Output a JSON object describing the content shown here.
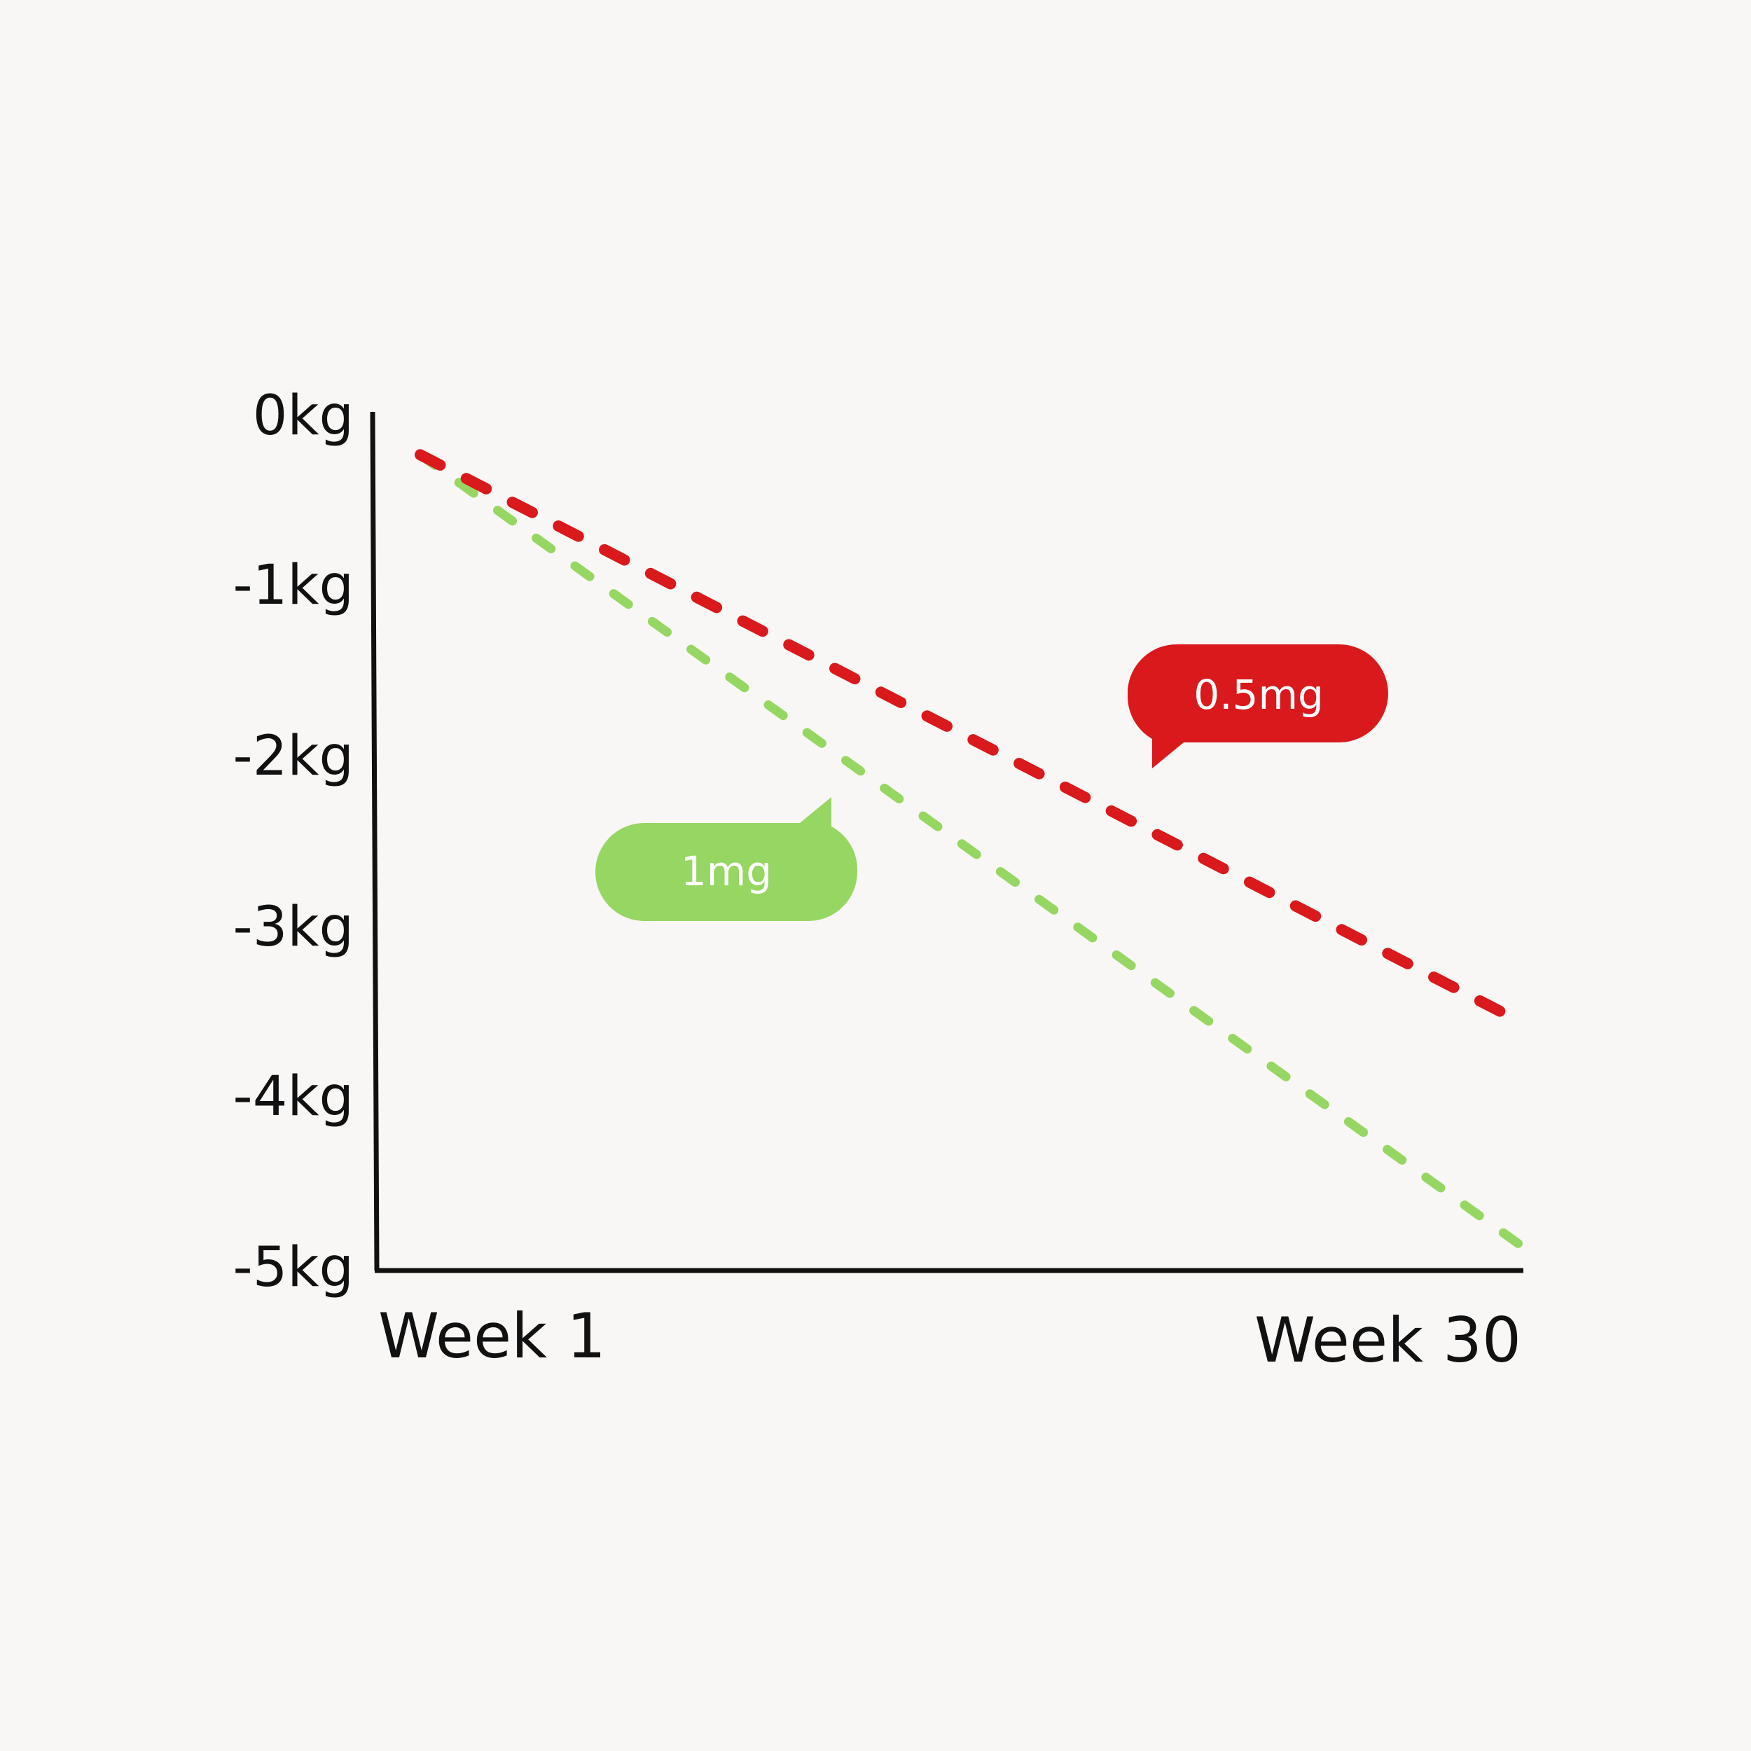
{
  "colors": {
    "background": "#f8f7f5",
    "axis": "#111111",
    "series_0_5mg": "#d9191c",
    "series_1mg": "#96d662"
  },
  "chart_data": {
    "type": "line",
    "x": [
      "Week 1",
      "Week 30"
    ],
    "y_tick_labels": [
      "0kg",
      "-1kg",
      "-2kg",
      "-3kg",
      "-4kg",
      "-5kg"
    ],
    "y_ticks": [
      0,
      -1,
      -2,
      -3,
      -4,
      -5
    ],
    "ylim": [
      -5,
      0
    ],
    "grid": false,
    "series": [
      {
        "name": "0.5mg",
        "values": [
          -0.25,
          -3.55
        ],
        "style": "dashed",
        "color": "#d9191c"
      },
      {
        "name": "1mg",
        "values": [
          -0.25,
          -4.85
        ],
        "style": "dashed",
        "color": "#96d662"
      }
    ],
    "annotations": [
      {
        "text": "0.5mg",
        "series": "0.5mg"
      },
      {
        "text": "1mg",
        "series": "1mg"
      }
    ]
  }
}
